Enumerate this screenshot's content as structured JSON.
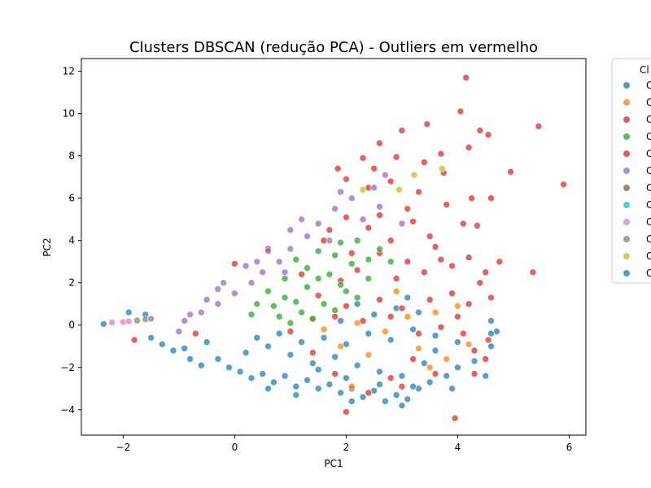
{
  "chart_data": {
    "type": "scatter",
    "title": "Clusters DBSCAN (redução PCA) - Outliers em vermelho",
    "xlabel": "PC1",
    "ylabel": "PC2",
    "xlim": [
      -2.75,
      6.3
    ],
    "ylim": [
      -5.2,
      12.6
    ],
    "xticks": [
      -2,
      0,
      2,
      4,
      6
    ],
    "yticks": [
      -4,
      -2,
      0,
      2,
      4,
      6,
      8,
      10,
      12
    ],
    "grid": false,
    "legend": {
      "title": "Cl",
      "placement": "outside-right",
      "entries": [
        {
          "label": "C",
          "color": "#1f77b4"
        },
        {
          "label": "C",
          "color": "#ff7f0e"
        },
        {
          "label": "C",
          "color": "#d62728"
        },
        {
          "label": "C",
          "color": "#2ca02c"
        },
        {
          "label": "C",
          "color": "#d62728"
        },
        {
          "label": "C",
          "color": "#9467bd"
        },
        {
          "label": "C",
          "color": "#8c564b"
        },
        {
          "label": "C",
          "color": "#17becf"
        },
        {
          "label": "C",
          "color": "#e377c2"
        },
        {
          "label": "C",
          "color": "#7f7f7f"
        },
        {
          "label": "C",
          "color": "#bcbd22"
        },
        {
          "label": "C",
          "color": "#1f77b4"
        }
      ]
    },
    "series": [
      {
        "color": "#1f77b4",
        "points": [
          [
            -2.35,
            0.05
          ],
          [
            -1.9,
            0.6
          ],
          [
            -1.6,
            0.5
          ],
          [
            -1.5,
            -0.6
          ],
          [
            -1.3,
            -0.9
          ],
          [
            -1.1,
            -1.2
          ],
          [
            -0.8,
            -1.6
          ],
          [
            -0.6,
            -1.9
          ],
          [
            -0.3,
            -1.6
          ],
          [
            -0.1,
            -2.0
          ],
          [
            0.1,
            -2.2
          ],
          [
            0.3,
            -2.5
          ],
          [
            0.5,
            -2.3
          ],
          [
            0.7,
            -2.7
          ],
          [
            0.9,
            -2.4
          ],
          [
            1.1,
            -2.9
          ],
          [
            1.3,
            -2.6
          ],
          [
            1.5,
            -3.0
          ],
          [
            1.7,
            -2.8
          ],
          [
            1.9,
            -3.2
          ],
          [
            2.1,
            -3.0
          ],
          [
            2.3,
            -3.4
          ],
          [
            2.5,
            -3.1
          ],
          [
            2.7,
            -3.6
          ],
          [
            2.9,
            -3.3
          ],
          [
            3.1,
            -3.5
          ],
          [
            3.3,
            -3.0
          ],
          [
            3.5,
            -2.7
          ],
          [
            3.8,
            -2.4
          ],
          [
            4.0,
            -2.0
          ],
          [
            4.3,
            -1.7
          ],
          [
            4.6,
            -1.0
          ],
          [
            4.7,
            -0.3
          ],
          [
            4.6,
            0.2
          ],
          [
            0.2,
            -1.3
          ],
          [
            0.6,
            -1.0
          ],
          [
            1.0,
            -1.4
          ],
          [
            1.4,
            -1.8
          ],
          [
            1.8,
            -1.5
          ],
          [
            2.2,
            -1.9
          ],
          [
            2.6,
            -2.2
          ],
          [
            3.0,
            -2.4
          ],
          [
            3.4,
            -1.8
          ],
          [
            3.6,
            -1.2
          ],
          [
            1.2,
            -0.8
          ],
          [
            1.6,
            -0.6
          ],
          [
            2.0,
            -0.9
          ],
          [
            2.4,
            -0.4
          ],
          [
            2.8,
            -0.7
          ],
          [
            3.2,
            -0.2
          ],
          [
            3.6,
            -0.5
          ],
          [
            4.0,
            -0.8
          ],
          [
            0.4,
            -0.6
          ],
          [
            0.8,
            -0.4
          ],
          [
            2.5,
            0.5
          ],
          [
            2.9,
            0.8
          ],
          [
            3.3,
            0.6
          ],
          [
            1.9,
            0.2
          ],
          [
            2.2,
            1.0
          ],
          [
            3.1,
            1.3
          ],
          [
            -0.5,
            -0.8
          ],
          [
            -0.9,
            -1.1
          ],
          [
            1.5,
            -2.1
          ],
          [
            2.0,
            -2.5
          ],
          [
            2.6,
            -2.8
          ],
          [
            3.2,
            -2.9
          ],
          [
            3.9,
            -3.0
          ],
          [
            4.5,
            -2.4
          ],
          [
            4.6,
            -0.4
          ],
          [
            3.0,
            -3.8
          ],
          [
            2.1,
            -3.6
          ],
          [
            1.1,
            -3.3
          ],
          [
            0.6,
            -3.0
          ]
        ]
      },
      {
        "color": "#ff7f0e",
        "points": [
          [
            1.6,
            -0.2
          ],
          [
            2.2,
            0.1
          ],
          [
            2.7,
            -0.3
          ],
          [
            3.1,
            0.4
          ],
          [
            3.6,
            0.6
          ],
          [
            1.9,
            -1.0
          ],
          [
            2.4,
            -1.4
          ],
          [
            3.3,
            -1.1
          ],
          [
            4.0,
            0.9
          ],
          [
            2.9,
            1.6
          ],
          [
            3.5,
            -2.0
          ],
          [
            2.1,
            -2.9
          ],
          [
            3.8,
            -1.6
          ],
          [
            1.4,
            0.3
          ],
          [
            4.2,
            -0.9
          ]
        ]
      },
      {
        "color": "#d62728",
        "points": [
          [
            4.15,
            11.7
          ],
          [
            4.05,
            10.1
          ],
          [
            3.45,
            9.5
          ],
          [
            4.4,
            9.2
          ],
          [
            4.55,
            9.0
          ],
          [
            5.45,
            9.4
          ],
          [
            3.0,
            9.2
          ],
          [
            2.6,
            8.6
          ],
          [
            2.9,
            7.95
          ],
          [
            3.7,
            8.1
          ],
          [
            4.2,
            8.4
          ],
          [
            3.4,
            7.7
          ],
          [
            2.5,
            7.4
          ],
          [
            2.3,
            7.9
          ],
          [
            1.85,
            7.4
          ],
          [
            2.0,
            6.9
          ],
          [
            2.4,
            6.5
          ],
          [
            2.8,
            6.8
          ],
          [
            3.3,
            6.3
          ],
          [
            3.75,
            7.2
          ],
          [
            4.25,
            6.0
          ],
          [
            4.6,
            6.0
          ],
          [
            4.95,
            7.25
          ],
          [
            5.9,
            6.65
          ],
          [
            5.35,
            2.5
          ],
          [
            4.75,
            3.0
          ],
          [
            4.1,
            4.8
          ],
          [
            4.35,
            4.7
          ],
          [
            4.2,
            3.2
          ],
          [
            4.5,
            2.5
          ],
          [
            3.9,
            2.8
          ],
          [
            3.5,
            4.2
          ],
          [
            3.2,
            4.9
          ],
          [
            2.8,
            4.0
          ],
          [
            2.4,
            4.6
          ],
          [
            2.0,
            5.1
          ],
          [
            1.7,
            4.5
          ],
          [
            1.6,
            4.0
          ],
          [
            2.6,
            3.4
          ],
          [
            3.1,
            3.0
          ],
          [
            3.7,
            3.1
          ],
          [
            2.2,
            2.6
          ],
          [
            1.9,
            2.1
          ],
          [
            2.9,
            2.2
          ],
          [
            3.4,
            2.5
          ],
          [
            3.9,
            1.5
          ],
          [
            4.2,
            1.0
          ],
          [
            4.4,
            2.0
          ],
          [
            4.6,
            1.3
          ],
          [
            1.5,
            1.4
          ],
          [
            2.0,
            0.9
          ],
          [
            2.6,
            1.2
          ],
          [
            3.0,
            0.8
          ],
          [
            3.5,
            1.2
          ],
          [
            4.0,
            0.4
          ],
          [
            1.8,
            0.4
          ],
          [
            2.3,
            0.2
          ],
          [
            2.8,
            0.4
          ],
          [
            3.3,
            -0.4
          ],
          [
            3.7,
            -0.1
          ],
          [
            4.1,
            -0.4
          ],
          [
            4.3,
            -1.2
          ],
          [
            4.5,
            -1.6
          ],
          [
            4.3,
            -2.3
          ],
          [
            3.95,
            -4.4
          ],
          [
            2.0,
            -4.1
          ],
          [
            2.4,
            -3.2
          ],
          [
            2.8,
            -2.5
          ],
          [
            3.2,
            -1.6
          ],
          [
            3.6,
            -2.3
          ],
          [
            1.8,
            -2.3
          ],
          [
            1.4,
            -1.3
          ],
          [
            1.0,
            -0.3
          ],
          [
            0.0,
            2.9
          ],
          [
            0.6,
            3.6
          ],
          [
            -1.8,
            -0.7
          ],
          [
            -0.7,
            -0.4
          ],
          [
            3.1,
            5.5
          ],
          [
            2.6,
            5.2
          ],
          [
            3.8,
            5.7
          ],
          [
            3.6,
            3.7
          ],
          [
            2.1,
            3.4
          ],
          [
            1.2,
            2.4
          ],
          [
            4.55,
            -0.7
          ],
          [
            3.0,
            -2.9
          ]
        ]
      },
      {
        "color": "#2ca02c",
        "points": [
          [
            1.1,
            3.1
          ],
          [
            1.5,
            3.5
          ],
          [
            1.9,
            3.9
          ],
          [
            2.2,
            4.0
          ],
          [
            2.6,
            3.6
          ],
          [
            2.4,
            3.1
          ],
          [
            1.8,
            3.3
          ],
          [
            1.3,
            2.7
          ],
          [
            0.9,
            2.2
          ],
          [
            0.6,
            1.6
          ],
          [
            0.4,
            1.0
          ],
          [
            0.9,
            1.3
          ],
          [
            1.3,
            1.8
          ],
          [
            1.7,
            2.4
          ],
          [
            2.1,
            2.9
          ],
          [
            2.4,
            2.2
          ],
          [
            2.0,
            1.6
          ],
          [
            1.6,
            1.0
          ],
          [
            1.2,
            0.6
          ],
          [
            0.8,
            0.4
          ],
          [
            1.0,
            0.1
          ],
          [
            1.4,
            0.3
          ],
          [
            1.8,
            0.7
          ],
          [
            2.2,
            1.3
          ],
          [
            0.7,
            0.9
          ],
          [
            1.5,
            2.2
          ],
          [
            2.8,
            3.0
          ],
          [
            1.1,
            1.1
          ],
          [
            0.3,
            0.5
          ],
          [
            1.9,
            1.9
          ]
        ]
      },
      {
        "color": "#9467bd",
        "points": [
          [
            -0.9,
            0.2
          ],
          [
            -0.6,
            0.6
          ],
          [
            -0.3,
            1.0
          ],
          [
            0.0,
            1.5
          ],
          [
            0.3,
            2.0
          ],
          [
            0.5,
            2.5
          ],
          [
            0.8,
            3.0
          ],
          [
            1.0,
            3.6
          ],
          [
            1.3,
            4.2
          ],
          [
            1.5,
            4.8
          ],
          [
            1.8,
            5.5
          ],
          [
            2.1,
            6.0
          ],
          [
            2.5,
            6.5
          ],
          [
            2.7,
            7.1
          ],
          [
            1.0,
            4.5
          ],
          [
            0.6,
            3.5
          ],
          [
            0.2,
            2.8
          ],
          [
            -0.2,
            2.0
          ],
          [
            -0.5,
            1.2
          ],
          [
            -0.8,
            0.5
          ],
          [
            -1.0,
            -0.3
          ],
          [
            1.7,
            4.0
          ],
          [
            2.3,
            5.0
          ],
          [
            1.9,
            6.3
          ],
          [
            2.6,
            5.6
          ],
          [
            3.0,
            4.8
          ],
          [
            1.2,
            5.0
          ],
          [
            0.4,
            3.0
          ],
          [
            0.9,
            2.5
          ],
          [
            -0.3,
            1.7
          ]
        ]
      },
      {
        "color": "#e377c2",
        "points": [
          [
            -2.2,
            0.12
          ],
          [
            -2.0,
            0.15
          ],
          [
            -1.9,
            0.18
          ]
        ]
      },
      {
        "color": "#7f7f7f",
        "points": [
          [
            -1.75,
            0.22
          ],
          [
            -1.6,
            0.28
          ],
          [
            -1.5,
            0.3
          ]
        ]
      },
      {
        "color": "#bcbd22",
        "points": [
          [
            3.22,
            7.1
          ],
          [
            3.72,
            7.4
          ],
          [
            2.3,
            6.4
          ],
          [
            2.95,
            6.4
          ]
        ]
      }
    ]
  }
}
